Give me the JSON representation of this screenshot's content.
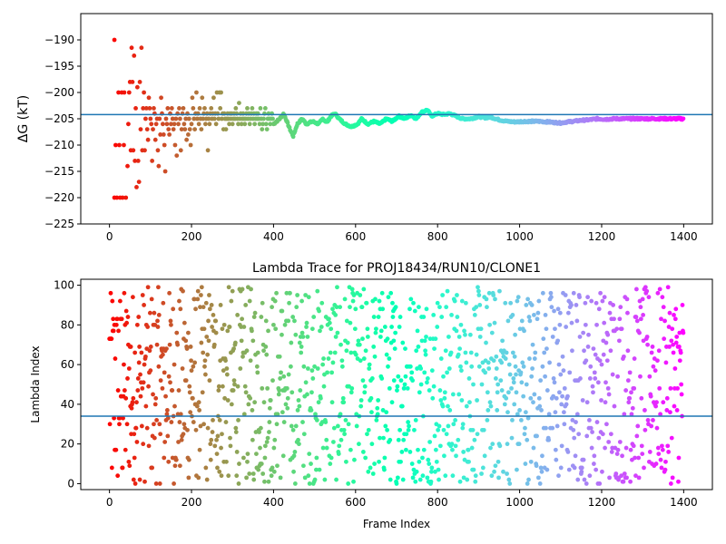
{
  "colors": {
    "hline": "#1f77b4",
    "frame": "#000000"
  },
  "chart_data": [
    {
      "type": "scatter",
      "title": "",
      "xlabel": "",
      "ylabel": "ΔG (kT)",
      "xlim": [
        -70,
        1470
      ],
      "ylim": [
        -225,
        -185
      ],
      "xticks": [
        0,
        200,
        400,
        600,
        800,
        1000,
        1200,
        1400
      ],
      "yticks": [
        -225,
        -220,
        -215,
        -210,
        -205,
        -200,
        -195,
        -190
      ],
      "hline": -204.2,
      "points": [
        [
          12,
          -190
        ],
        [
          12,
          -220
        ],
        [
          15,
          -210
        ],
        [
          18,
          -220
        ],
        [
          22,
          -200
        ],
        [
          24,
          -210
        ],
        [
          26,
          -220
        ],
        [
          30,
          -200
        ],
        [
          32,
          -220
        ],
        [
          35,
          -210
        ],
        [
          36,
          -200
        ],
        [
          40,
          -220
        ],
        [
          44,
          -214
        ],
        [
          46,
          -206
        ],
        [
          48,
          -200
        ],
        [
          50,
          -198
        ],
        [
          52,
          -211
        ],
        [
          54,
          -191.5
        ],
        [
          56,
          -198
        ],
        [
          58,
          -211
        ],
        [
          60,
          -193
        ],
        [
          62,
          -213
        ],
        [
          64,
          -203
        ],
        [
          66,
          -218
        ],
        [
          68,
          -199
        ],
        [
          70,
          -213
        ],
        [
          72,
          -217
        ],
        [
          74,
          -198
        ],
        [
          76,
          -207
        ],
        [
          78,
          -191.5
        ],
        [
          80,
          -211
        ],
        [
          82,
          -203
        ],
        [
          84,
          -200
        ],
        [
          86,
          -211
        ],
        [
          88,
          -205
        ],
        [
          90,
          -203
        ],
        [
          92,
          -207
        ],
        [
          94,
          -209
        ],
        [
          96,
          -201
        ],
        [
          98,
          -203
        ],
        [
          100,
          -205
        ],
        [
          102,
          -206
        ],
        [
          104,
          -213
        ],
        [
          106,
          -207
        ],
        [
          108,
          -203
        ],
        [
          110,
          -204
        ],
        [
          112,
          -209
        ],
        [
          114,
          -206
        ],
        [
          116,
          -205
        ],
        [
          118,
          -211
        ],
        [
          120,
          -214
        ],
        [
          122,
          -205
        ],
        [
          124,
          -208
        ],
        [
          126,
          -201
        ],
        [
          128,
          -204
        ],
        [
          130,
          -206
        ],
        [
          132,
          -208
        ],
        [
          134,
          -210
        ],
        [
          136,
          -215
        ],
        [
          138,
          -205
        ],
        [
          140,
          -206
        ],
        [
          142,
          -203
        ],
        [
          144,
          -207
        ],
        [
          146,
          -208
        ],
        [
          148,
          -204
        ],
        [
          150,
          -206
        ],
        [
          152,
          -203
        ],
        [
          154,
          -205
        ],
        [
          156,
          -207
        ],
        [
          158,
          -206
        ],
        [
          160,
          -210
        ],
        [
          162,
          -205
        ],
        [
          164,
          -212
        ],
        [
          166,
          -204
        ],
        [
          168,
          -206
        ],
        [
          170,
          -203
        ],
        [
          172,
          -205
        ],
        [
          174,
          -211
        ],
        [
          176,
          -207
        ],
        [
          178,
          -204
        ],
        [
          180,
          -203
        ],
        [
          182,
          -206
        ],
        [
          184,
          -207
        ],
        [
          186,
          -205
        ],
        [
          188,
          -209
        ],
        [
          190,
          -204
        ],
        [
          192,
          -208
        ],
        [
          194,
          -205
        ],
        [
          196,
          -207
        ],
        [
          198,
          -210
        ],
        [
          200,
          -206
        ],
        [
          202,
          -201
        ],
        [
          204,
          -203
        ],
        [
          206,
          -205
        ],
        [
          208,
          -207
        ],
        [
          210,
          -204
        ],
        [
          212,
          -200
        ],
        [
          214,
          -205
        ],
        [
          216,
          -204
        ],
        [
          218,
          -206
        ],
        [
          220,
          -203
        ],
        [
          222,
          -205
        ],
        [
          224,
          -207
        ],
        [
          226,
          -201
        ],
        [
          228,
          -205
        ],
        [
          230,
          -204
        ],
        [
          232,
          -203
        ],
        [
          234,
          -206
        ],
        [
          236,
          -205
        ],
        [
          238,
          -204
        ],
        [
          240,
          -211
        ],
        [
          242,
          -205
        ],
        [
          244,
          -206
        ],
        [
          246,
          -204
        ],
        [
          248,
          -203
        ],
        [
          250,
          -205
        ],
        [
          252,
          -204
        ],
        [
          254,
          -201
        ],
        [
          256,
          -205
        ],
        [
          258,
          -204
        ],
        [
          260,
          -206
        ],
        [
          262,
          -200
        ],
        [
          264,
          -204
        ],
        [
          266,
          -205
        ],
        [
          268,
          -200
        ],
        [
          270,
          -203
        ],
        [
          272,
          -200
        ],
        [
          274,
          -205
        ],
        [
          276,
          -204
        ],
        [
          278,
          -207
        ],
        [
          280,
          -204
        ],
        [
          282,
          -205
        ],
        [
          284,
          -207
        ],
        [
          286,
          -205
        ],
        [
          288,
          -204
        ],
        [
          290,
          -205
        ],
        [
          292,
          -206
        ],
        [
          294,
          -204
        ],
        [
          296,
          -205
        ],
        [
          298,
          -204
        ],
        [
          300,
          -206
        ],
        [
          302,
          -205
        ],
        [
          304,
          -204
        ],
        [
          306,
          -205
        ],
        [
          308,
          -203
        ],
        [
          310,
          -204
        ],
        [
          312,
          -205
        ],
        [
          314,
          -206
        ],
        [
          316,
          -202
        ],
        [
          318,
          -205
        ],
        [
          320,
          -204
        ],
        [
          322,
          -206
        ],
        [
          324,
          -205
        ],
        [
          326,
          -204
        ],
        [
          328,
          -205
        ],
        [
          330,
          -206
        ],
        [
          332,
          -205
        ],
        [
          334,
          -204
        ],
        [
          336,
          -203
        ],
        [
          338,
          -205
        ],
        [
          340,
          -204
        ],
        [
          342,
          -206
        ],
        [
          344,
          -205
        ],
        [
          346,
          -204
        ],
        [
          348,
          -203
        ],
        [
          350,
          -205
        ],
        [
          352,
          -204
        ],
        [
          354,
          -206
        ],
        [
          356,
          -205
        ],
        [
          358,
          -204
        ],
        [
          360,
          -205
        ],
        [
          362,
          -204
        ],
        [
          364,
          -205
        ],
        [
          366,
          -206
        ],
        [
          368,
          -203
        ],
        [
          370,
          -205
        ],
        [
          372,
          -207
        ],
        [
          374,
          -206
        ],
        [
          376,
          -205
        ],
        [
          378,
          -204
        ],
        [
          380,
          -203
        ],
        [
          382,
          -206
        ],
        [
          384,
          -207
        ],
        [
          386,
          -205
        ],
        [
          388,
          -204
        ],
        [
          390,
          -205
        ],
        [
          392,
          -206
        ],
        [
          394,
          -205
        ],
        [
          396,
          -204
        ],
        [
          398,
          -205
        ]
      ],
      "trace": [
        [
          400,
          -206
        ],
        [
          415,
          -205
        ],
        [
          425,
          -204
        ],
        [
          440,
          -207
        ],
        [
          448,
          -208.3
        ],
        [
          458,
          -206
        ],
        [
          470,
          -205
        ],
        [
          480,
          -206
        ],
        [
          495,
          -205.5
        ],
        [
          510,
          -206
        ],
        [
          520,
          -205
        ],
        [
          530,
          -205.7
        ],
        [
          540,
          -204.5
        ],
        [
          550,
          -204
        ],
        [
          560,
          -205
        ],
        [
          575,
          -206
        ],
        [
          590,
          -206.5
        ],
        [
          605,
          -206
        ],
        [
          615,
          -205
        ],
        [
          630,
          -206
        ],
        [
          645,
          -205.5
        ],
        [
          660,
          -206
        ],
        [
          675,
          -205
        ],
        [
          690,
          -205.5
        ],
        [
          705,
          -204.5
        ],
        [
          720,
          -205
        ],
        [
          735,
          -204.3
        ],
        [
          748,
          -205
        ],
        [
          760,
          -203.8
        ],
        [
          775,
          -203.3
        ],
        [
          785,
          -204.5
        ],
        [
          800,
          -204
        ],
        [
          815,
          -204.2
        ],
        [
          830,
          -204
        ],
        [
          845,
          -204.5
        ],
        [
          860,
          -205
        ],
        [
          880,
          -205
        ],
        [
          900,
          -204.6
        ],
        [
          915,
          -204.8
        ],
        [
          930,
          -204.7
        ],
        [
          950,
          -205.2
        ],
        [
          970,
          -205.5
        ],
        [
          990,
          -205.6
        ],
        [
          1010,
          -205.5
        ],
        [
          1030,
          -205.5
        ],
        [
          1050,
          -205.5
        ],
        [
          1070,
          -205.6
        ],
        [
          1085,
          -205.7
        ],
        [
          1100,
          -205.8
        ],
        [
          1115,
          -205.6
        ],
        [
          1130,
          -205.5
        ],
        [
          1150,
          -205.3
        ],
        [
          1170,
          -205.2
        ],
        [
          1190,
          -205
        ],
        [
          1210,
          -205.1
        ],
        [
          1230,
          -205
        ],
        [
          1250,
          -205
        ],
        [
          1270,
          -205
        ],
        [
          1290,
          -205
        ],
        [
          1310,
          -205
        ],
        [
          1330,
          -205
        ],
        [
          1350,
          -205
        ],
        [
          1370,
          -205
        ],
        [
          1385,
          -205
        ],
        [
          1400,
          -205
        ]
      ]
    },
    {
      "type": "scatter",
      "title": "Lambda Trace for PROJ18434/RUN10/CLONE1",
      "xlabel": "Frame Index",
      "ylabel": "Lambda Index",
      "xlim": [
        -70,
        1470
      ],
      "ylim": [
        -3,
        103
      ],
      "xticks": [
        0,
        200,
        400,
        600,
        800,
        1000,
        1200,
        1400
      ],
      "yticks": [
        0,
        20,
        40,
        60,
        80,
        100
      ],
      "hline": 34,
      "n_points": 1400
    }
  ]
}
